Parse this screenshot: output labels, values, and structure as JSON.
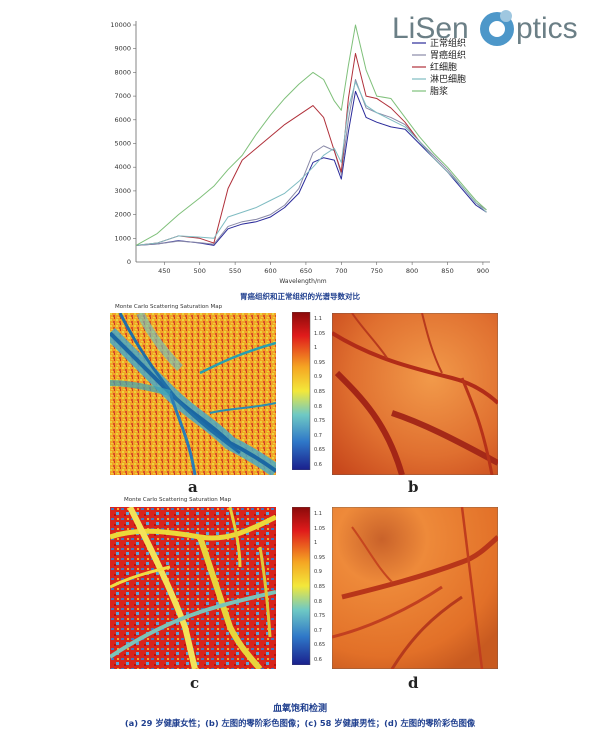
{
  "logo": {
    "text_left": "LiSen",
    "text_right": "ptics"
  },
  "chart_data": {
    "type": "line",
    "xlabel": "Wavelength/nm",
    "ylabel": "",
    "xlim": [
      410,
      910
    ],
    "ylim": [
      0,
      10000
    ],
    "x_ticks": [
      450,
      500,
      550,
      600,
      650,
      700,
      750,
      800,
      850,
      900
    ],
    "y_ticks": [
      1000,
      2000,
      3000,
      4000,
      5000,
      6000,
      7000,
      8000,
      9000,
      10000
    ],
    "legend_position": "top-right",
    "series": [
      {
        "name": "正常组织",
        "color": "#2a2a9a",
        "x": [
          410,
          440,
          470,
          500,
          520,
          540,
          560,
          580,
          600,
          620,
          640,
          660,
          675,
          690,
          700,
          710,
          720,
          735,
          750,
          770,
          790,
          810,
          830,
          850,
          870,
          890,
          905
        ],
        "y": [
          700,
          760,
          900,
          800,
          700,
          1400,
          1600,
          1700,
          1900,
          2300,
          2900,
          4200,
          4400,
          4300,
          3500,
          5500,
          7200,
          6100,
          5900,
          5700,
          5600,
          5000,
          4400,
          3800,
          3100,
          2400,
          2100
        ]
      },
      {
        "name": "胃癌组织",
        "color": "#8a8aa8",
        "x": [
          410,
          440,
          470,
          500,
          520,
          540,
          560,
          580,
          600,
          620,
          640,
          660,
          675,
          690,
          700,
          710,
          720,
          735,
          750,
          770,
          790,
          810,
          830,
          850,
          870,
          890,
          905
        ],
        "y": [
          700,
          760,
          880,
          820,
          750,
          1500,
          1700,
          1800,
          2000,
          2400,
          3100,
          4600,
          4900,
          4700,
          3700,
          6000,
          7700,
          6500,
          6300,
          6100,
          5800,
          5100,
          4500,
          3900,
          3200,
          2500,
          2200
        ]
      },
      {
        "name": "红细胞",
        "color": "#b0303a",
        "x": [
          410,
          440,
          470,
          500,
          520,
          540,
          560,
          580,
          600,
          620,
          640,
          660,
          675,
          690,
          700,
          710,
          720,
          735,
          750,
          770,
          790,
          810,
          830,
          850,
          870,
          890,
          905
        ],
        "y": [
          700,
          800,
          1100,
          1000,
          800,
          3100,
          4300,
          4800,
          5300,
          5800,
          6200,
          6600,
          6100,
          4700,
          3800,
          6900,
          8800,
          7000,
          6900,
          6500,
          5900,
          5100,
          4400,
          3800,
          3200,
          2500,
          2100
        ]
      },
      {
        "name": "淋巴细胞",
        "color": "#7fbcc2",
        "x": [
          410,
          440,
          470,
          500,
          520,
          540,
          560,
          580,
          600,
          620,
          640,
          660,
          675,
          690,
          700,
          710,
          720,
          735,
          750,
          770,
          790,
          810,
          830,
          850,
          870,
          890,
          905
        ],
        "y": [
          700,
          800,
          1100,
          1050,
          1000,
          1900,
          2100,
          2300,
          2600,
          2900,
          3400,
          4000,
          4500,
          4800,
          4200,
          6500,
          7600,
          6600,
          6300,
          6000,
          5700,
          5100,
          4400,
          3800,
          3200,
          2500,
          2100
        ]
      },
      {
        "name": "脂浆",
        "color": "#7fc07a",
        "x": [
          410,
          440,
          470,
          500,
          520,
          540,
          560,
          580,
          600,
          620,
          640,
          660,
          675,
          690,
          700,
          710,
          720,
          735,
          750,
          770,
          790,
          810,
          830,
          850,
          870,
          890,
          905
        ],
        "y": [
          700,
          1200,
          2000,
          2700,
          3200,
          3900,
          4500,
          5400,
          6200,
          6900,
          7500,
          8000,
          7700,
          6800,
          6400,
          8300,
          10000,
          8100,
          7000,
          6900,
          6100,
          5300,
          4600,
          4000,
          3300,
          2600,
          2200
        ]
      }
    ]
  },
  "chart_caption": "胃癌组织和正常组织的光谱导数对比",
  "panels": {
    "map_title": "Monte Carlo Scattering Saturation Map",
    "colorbar_ticks": [
      "1.1",
      "1.05",
      "1",
      "0.95",
      "0.9",
      "0.85",
      "0.8",
      "0.75",
      "0.7",
      "0.65",
      "0.6"
    ],
    "letters": [
      "a",
      "b",
      "c",
      "d"
    ]
  },
  "figure_caption": {
    "title": "血氧饱和检测",
    "subtitle": "(a) 29 岁健康女性；(b) 左图的零阶彩色图像；(c) 58 岁健康男性；(d) 左图的零阶彩色图像"
  }
}
